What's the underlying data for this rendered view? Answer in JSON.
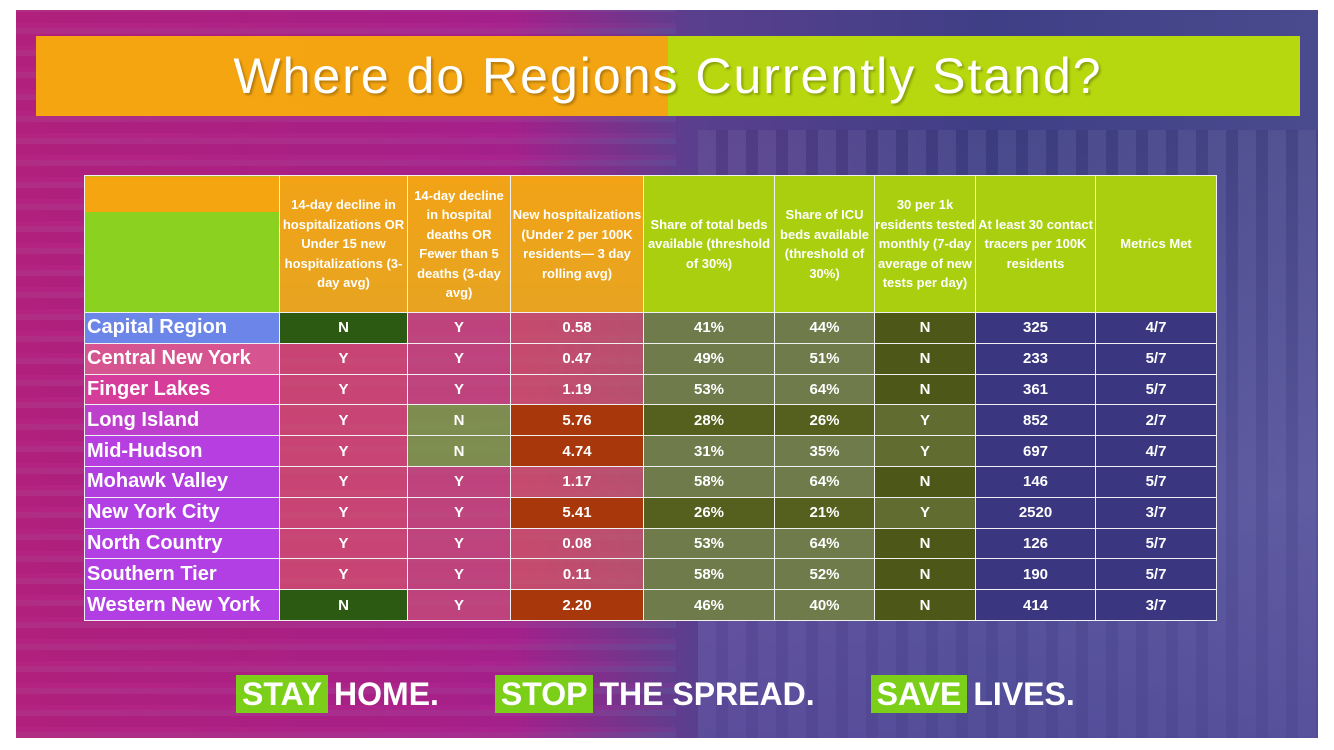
{
  "title": "Where do Regions Currently Stand?",
  "headers": [
    "",
    "14-day decline in hospitalizations OR Under 15 new hospitalizations (3-day avg)",
    "14-day decline in hospital deaths OR Fewer than 5 deaths (3-day avg)",
    "New hospitalizations (Under 2 per 100K residents— 3 day rolling avg)",
    "Share of total beds available (threshold of 30%)",
    "Share of ICU beds available (threshold of 30%)",
    "30 per 1k residents tested monthly (7-day average of new tests per day)",
    "At least 30 contact tracers per 100K residents",
    "Metrics Met"
  ],
  "rows": [
    {
      "region": "Capital Region",
      "c1": "N",
      "c2": "Y",
      "c3": "0.58",
      "c4": "41%",
      "c5": "44%",
      "c6": "N",
      "c7": "325",
      "c8": "4/7"
    },
    {
      "region": "Central New York",
      "c1": "Y",
      "c2": "Y",
      "c3": "0.47",
      "c4": "49%",
      "c5": "51%",
      "c6": "N",
      "c7": "233",
      "c8": "5/7"
    },
    {
      "region": "Finger Lakes",
      "c1": "Y",
      "c2": "Y",
      "c3": "1.19",
      "c4": "53%",
      "c5": "64%",
      "c6": "N",
      "c7": "361",
      "c8": "5/7"
    },
    {
      "region": "Long Island",
      "c1": "Y",
      "c2": "N",
      "c3": "5.76",
      "c4": "28%",
      "c5": "26%",
      "c6": "Y",
      "c7": "852",
      "c8": "2/7"
    },
    {
      "region": "Mid-Hudson",
      "c1": "Y",
      "c2": "N",
      "c3": "4.74",
      "c4": "31%",
      "c5": "35%",
      "c6": "Y",
      "c7": "697",
      "c8": "4/7"
    },
    {
      "region": "Mohawk Valley",
      "c1": "Y",
      "c2": "Y",
      "c3": "1.17",
      "c4": "58%",
      "c5": "64%",
      "c6": "N",
      "c7": "146",
      "c8": "5/7"
    },
    {
      "region": "New York City",
      "c1": "Y",
      "c2": "Y",
      "c3": "5.41",
      "c4": "26%",
      "c5": "21%",
      "c6": "Y",
      "c7": "2520",
      "c8": "3/7"
    },
    {
      "region": "North Country",
      "c1": "Y",
      "c2": "Y",
      "c3": "0.08",
      "c4": "53%",
      "c5": "64%",
      "c6": "N",
      "c7": "126",
      "c8": "5/7"
    },
    {
      "region": "Southern Tier",
      "c1": "Y",
      "c2": "Y",
      "c3": "0.11",
      "c4": "58%",
      "c5": "52%",
      "c6": "N",
      "c7": "190",
      "c8": "5/7"
    },
    {
      "region": "Western New York",
      "c1": "N",
      "c2": "Y",
      "c3": "2.20",
      "c4": "46%",
      "c5": "40%",
      "c6": "N",
      "c7": "414",
      "c8": "3/7"
    }
  ],
  "footer": {
    "p1_tag": "STAY",
    "p1_rest": "HOME.",
    "p2_tag": "STOP",
    "p2_rest": "THE SPREAD.",
    "p3_tag": "SAVE",
    "p3_rest": "LIVES."
  },
  "colors": {
    "orange": "#f5a50f",
    "lime": "#b6d80e",
    "magenta": "#b0207c",
    "purple": "#3e3f86"
  }
}
